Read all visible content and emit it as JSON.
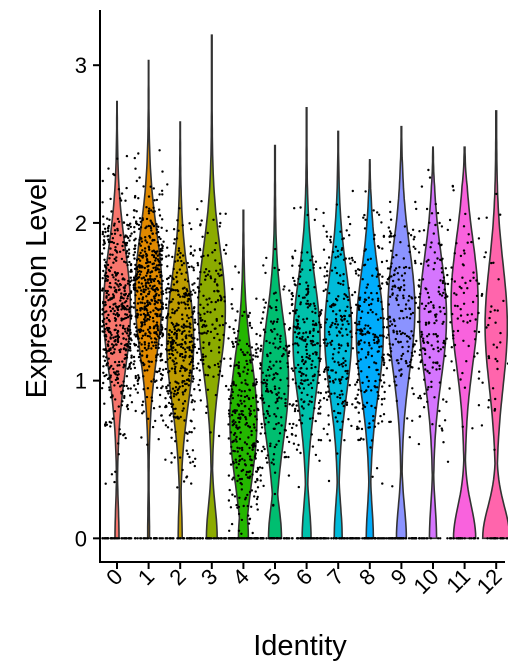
{
  "chart_data": {
    "type": "violin",
    "title": "",
    "xlabel": "Identity",
    "ylabel": "Expression Level",
    "ylim": [
      -0.15,
      3.35
    ],
    "yticks": [
      0,
      1,
      2,
      3
    ],
    "jitter_points": true,
    "grid": false,
    "legend": "none",
    "categories": [
      "0",
      "1",
      "2",
      "3",
      "4",
      "5",
      "6",
      "7",
      "8",
      "9",
      "10",
      "11",
      "12"
    ],
    "colors": [
      "#F8766D",
      "#E18A00",
      "#BE9C00",
      "#8CAB00",
      "#24B700",
      "#00BE70",
      "#00C1AB",
      "#00BBDA",
      "#00ACFC",
      "#8B93FF",
      "#D575FE",
      "#F962DD",
      "#FF65AC"
    ],
    "series": [
      {
        "category": "0",
        "max": 2.77,
        "median": 1.45,
        "zero_fraction": 0.12,
        "n_points": 520
      },
      {
        "category": "1",
        "max": 3.03,
        "median": 1.55,
        "zero_fraction": 0.05,
        "n_points": 560
      },
      {
        "category": "2",
        "max": 2.64,
        "median": 1.25,
        "zero_fraction": 0.12,
        "n_points": 420
      },
      {
        "category": "3",
        "max": 3.19,
        "median": 1.45,
        "zero_fraction": 0.28,
        "n_points": 180
      },
      {
        "category": "4",
        "max": 2.08,
        "median": 0.75,
        "zero_fraction": 0.26,
        "n_points": 360
      },
      {
        "category": "5",
        "max": 2.49,
        "median": 1.0,
        "zero_fraction": 0.32,
        "n_points": 220
      },
      {
        "category": "6",
        "max": 2.73,
        "median": 1.25,
        "zero_fraction": 0.24,
        "n_points": 280
      },
      {
        "category": "7",
        "max": 2.58,
        "median": 1.3,
        "zero_fraction": 0.22,
        "n_points": 240
      },
      {
        "category": "8",
        "max": 2.4,
        "median": 1.3,
        "zero_fraction": 0.2,
        "n_points": 260
      },
      {
        "category": "9",
        "max": 2.61,
        "median": 1.45,
        "zero_fraction": 0.26,
        "n_points": 220
      },
      {
        "category": "10",
        "max": 2.48,
        "median": 1.4,
        "zero_fraction": 0.2,
        "n_points": 180
      },
      {
        "category": "11",
        "max": 2.48,
        "median": 1.5,
        "zero_fraction": 0.45,
        "n_points": 100
      },
      {
        "category": "12",
        "max": 2.71,
        "median": 1.35,
        "zero_fraction": 0.55,
        "n_points": 60
      }
    ]
  }
}
